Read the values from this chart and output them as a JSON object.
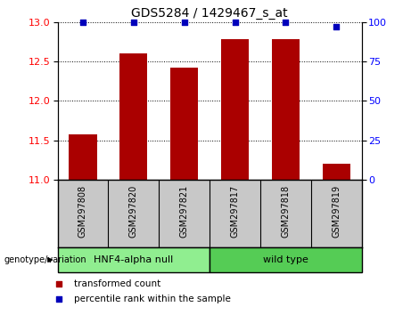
{
  "title": "GDS5284 / 1429467_s_at",
  "samples": [
    "GSM297808",
    "GSM297820",
    "GSM297821",
    "GSM297817",
    "GSM297818",
    "GSM297819"
  ],
  "red_values": [
    11.57,
    12.6,
    12.42,
    12.78,
    12.78,
    11.2
  ],
  "blue_values": [
    100,
    100,
    100,
    100,
    100,
    97
  ],
  "groups": [
    {
      "label": "HNF4-alpha null",
      "color": "#90EE90",
      "start": 0,
      "end": 3
    },
    {
      "label": "wild type",
      "color": "#55CC55",
      "start": 3,
      "end": 6
    }
  ],
  "ylim_left": [
    11,
    13
  ],
  "ylim_right": [
    0,
    100
  ],
  "yticks_left": [
    11,
    11.5,
    12,
    12.5,
    13
  ],
  "yticks_right": [
    0,
    25,
    50,
    75,
    100
  ],
  "bar_color": "#AA0000",
  "dot_color": "#0000BB",
  "bar_width": 0.55,
  "bg_color": "#FFFFFF",
  "legend_red": "transformed count",
  "legend_blue": "percentile rank within the sample",
  "genotype_label": "genotype/variation",
  "xtick_bg": "#C8C8C8",
  "n_samples": 6,
  "group_boundary": 3
}
